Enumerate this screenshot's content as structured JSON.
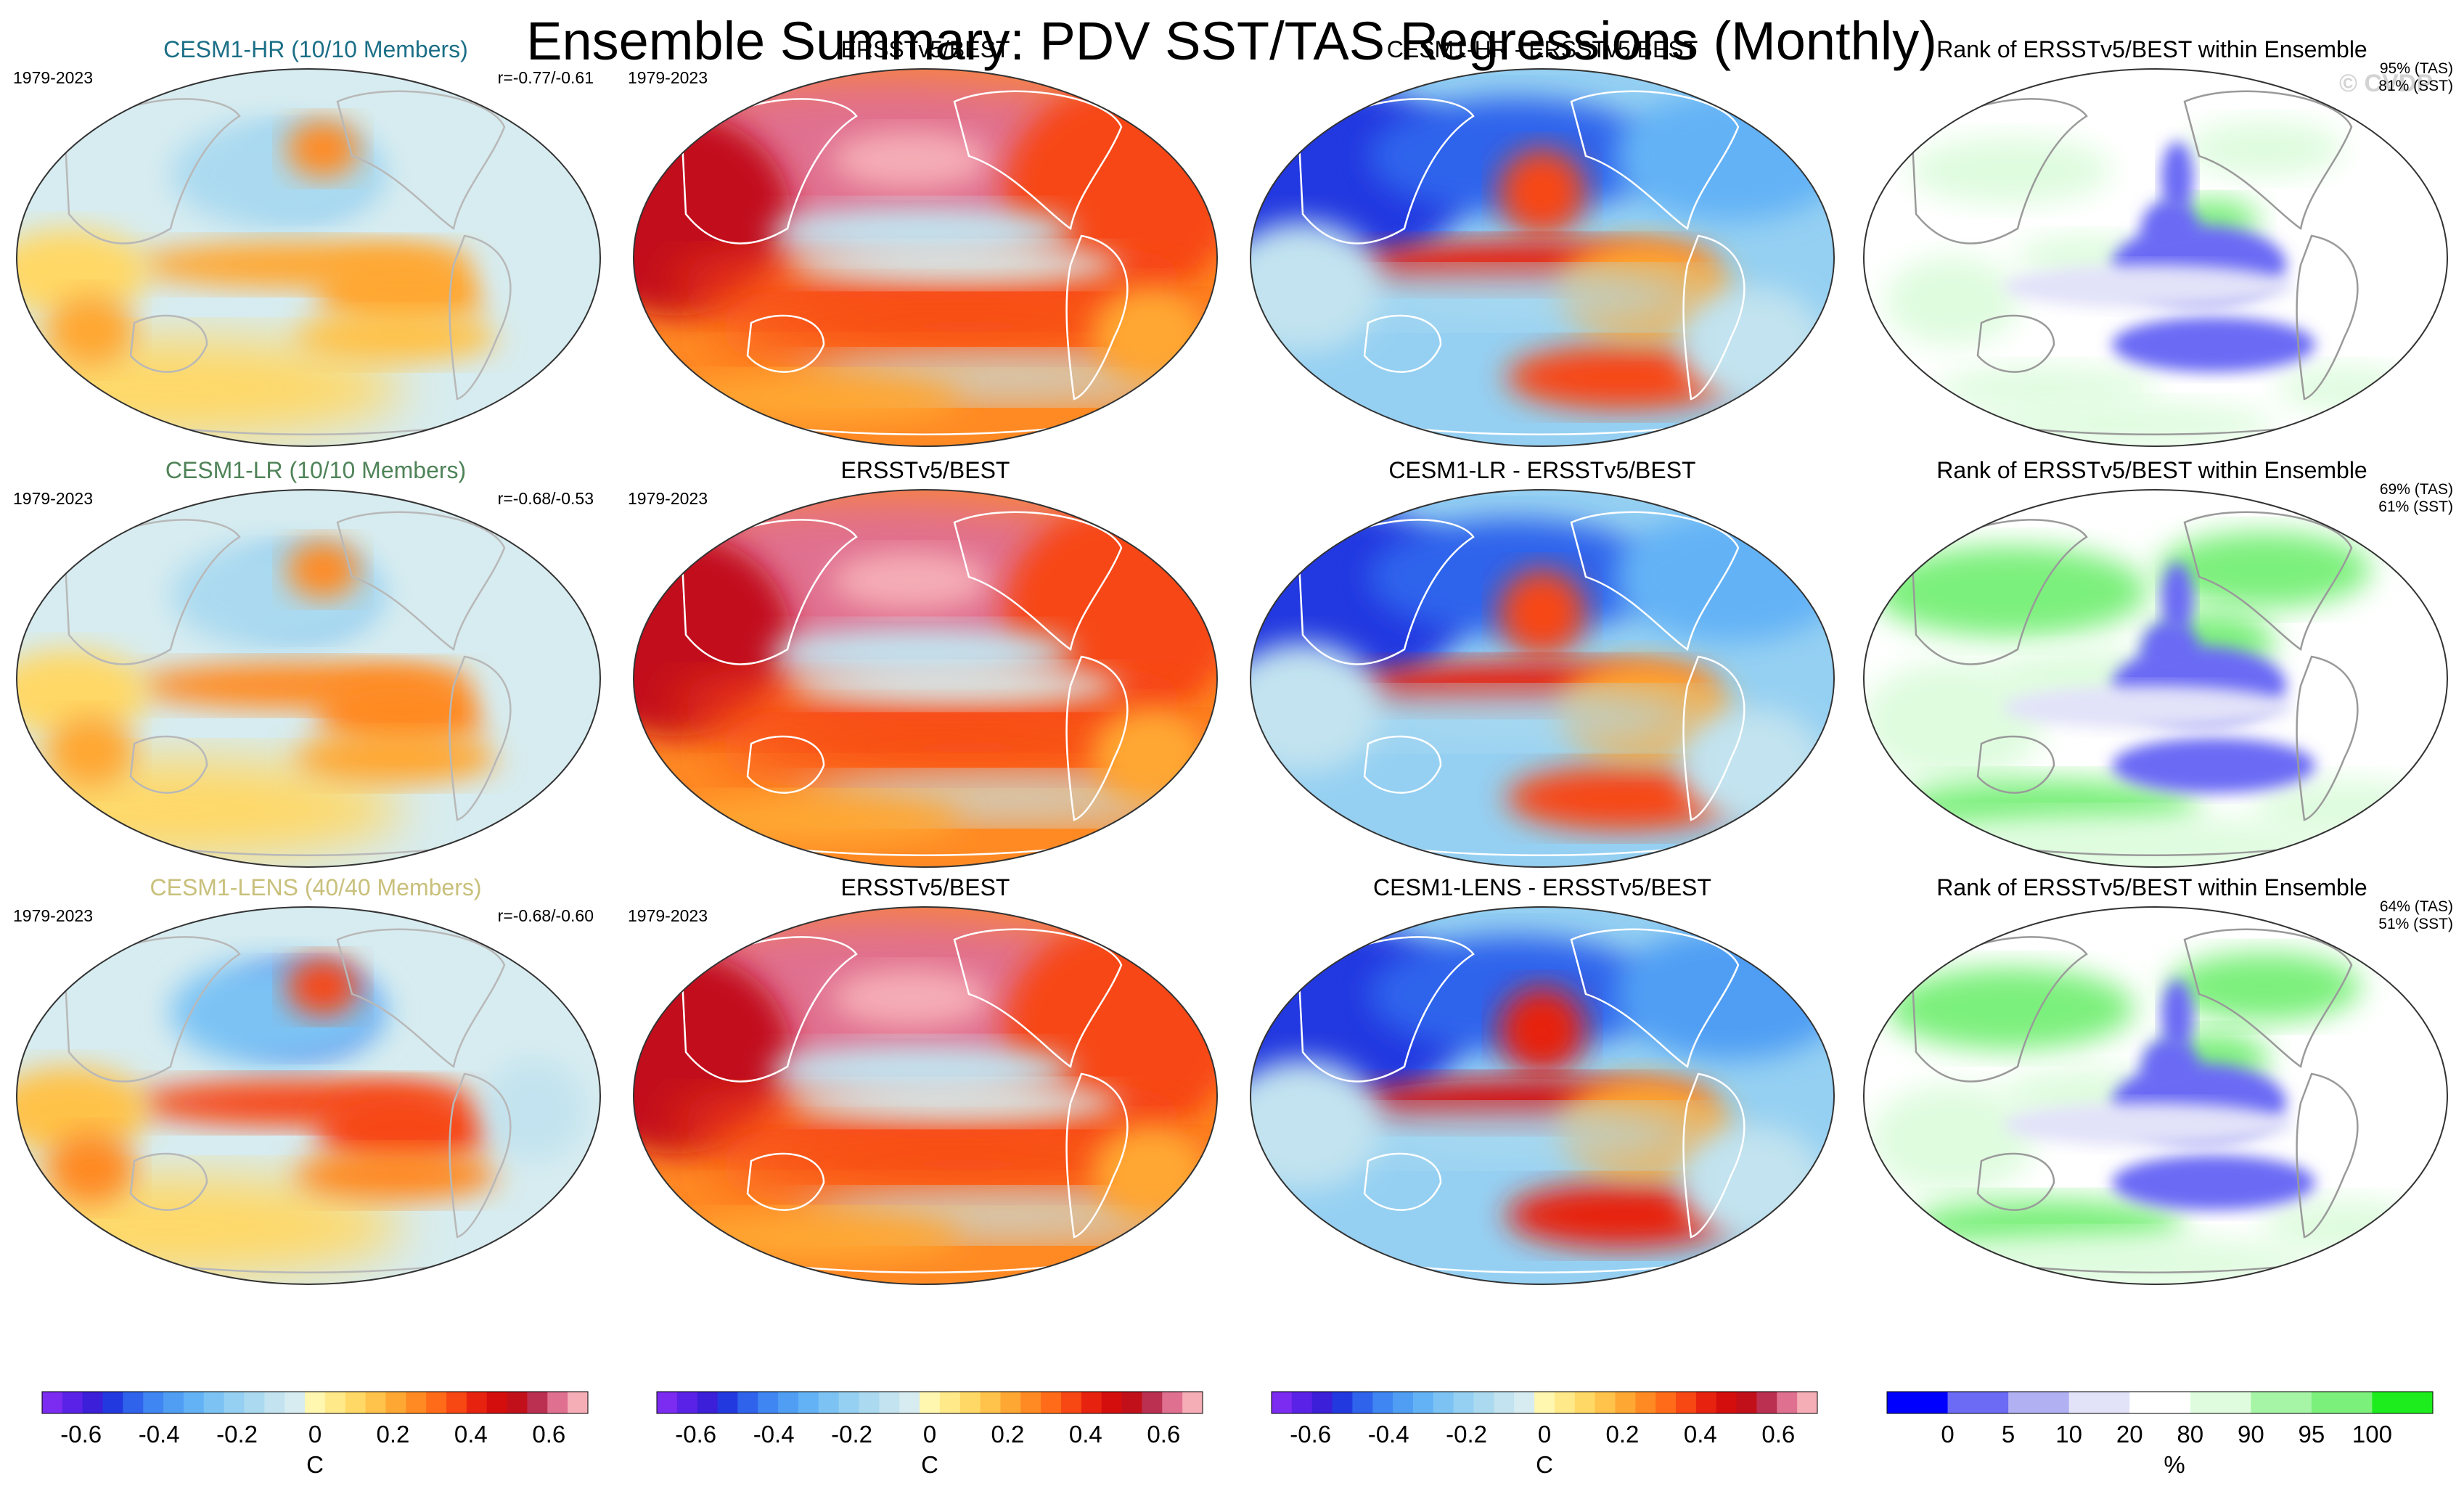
{
  "title": "Ensemble Summary: PDV SST/TAS Regressions (Monthly)",
  "watermark": "© CVDP",
  "colors": {
    "model_hr": "#1b6f86",
    "model_lr": "#4f8358",
    "model_lens": "#c9c07c",
    "watermark": "#d3d3d3"
  },
  "chart_data": {
    "type": "heatmap",
    "layout": "3 rows x 4 columns of global map panels",
    "rows": [
      {
        "model_title": "CESM1-HR (10/10 Members)",
        "model_color_key": "model_hr",
        "period": "1979-2023",
        "pattern_corr": "r=-0.77/-0.61",
        "obs_title": "ERSSTv5/BEST",
        "obs_period": "1979-2023",
        "diff_title": "CESM1-HR - ERSSTv5/BEST",
        "rank_title": "Rank of ERSSTv5/BEST within Ensemble",
        "rank_tas": "95% (TAS)",
        "rank_sst": "81% (SST)",
        "model_amp": 0.62,
        "diff_amp": 0.85,
        "rank_green": 0.35
      },
      {
        "model_title": "CESM1-LR (10/10 Members)",
        "model_color_key": "model_lr",
        "period": "1979-2023",
        "pattern_corr": "r=-0.68/-0.53",
        "obs_title": "ERSSTv5/BEST",
        "obs_period": "1979-2023",
        "diff_title": "CESM1-LR - ERSSTv5/BEST",
        "rank_title": "Rank of ERSSTv5/BEST within Ensemble",
        "rank_tas": "69% (TAS)",
        "rank_sst": "61% (SST)",
        "model_amp": 0.7,
        "diff_amp": 0.85,
        "rank_green": 0.9
      },
      {
        "model_title": "CESM1-LENS (40/40 Members)",
        "model_color_key": "model_lens",
        "period": "1979-2023",
        "pattern_corr": "r=-0.68/-0.60",
        "obs_title": "ERSSTv5/BEST",
        "obs_period": "1979-2023",
        "diff_title": "CESM1-LENS - ERSSTv5/BEST",
        "rank_title": "Rank of ERSSTv5/BEST within Ensemble",
        "rank_tas": "64% (TAS)",
        "rank_sst": "51% (SST)",
        "model_amp": 1.0,
        "diff_amp": 0.9,
        "rank_green": 0.7
      }
    ],
    "temperature_colorbar": {
      "units": "C",
      "range": [
        -0.7,
        0.7
      ],
      "interval": 0.05,
      "tick_labels": [
        "-0.6",
        "-0.4",
        "-0.2",
        "0",
        "0.2",
        "0.4",
        "0.6"
      ],
      "tick_values": [
        -0.6,
        -0.4,
        -0.2,
        0,
        0.2,
        0.4,
        0.6
      ],
      "colors": [
        "#7b2cf0",
        "#5a22e6",
        "#3b1fd9",
        "#2339e0",
        "#2f63ec",
        "#3f86f2",
        "#4f9ef4",
        "#63b2f6",
        "#7cc3f4",
        "#95d0f2",
        "#abdaf0",
        "#c2e3ef",
        "#d7ecf0",
        "#fff7b0",
        "#ffe989",
        "#ffd866",
        "#ffc24a",
        "#ffa733",
        "#ff8a24",
        "#ff6b19",
        "#f74712",
        "#e72310",
        "#d40d0d",
        "#c2101b",
        "#bb3050",
        "#e07090",
        "#f5adb6"
      ]
    },
    "percent_colorbar": {
      "units": "%",
      "tick_labels": [
        "0",
        "5",
        "10",
        "20",
        "80",
        "90",
        "95",
        "100"
      ],
      "tick_values": [
        0,
        5,
        10,
        20,
        80,
        90,
        95,
        100
      ],
      "bin_edges": [
        0,
        5,
        10,
        20,
        80,
        90,
        95,
        100
      ],
      "colors": [
        "#0000ff",
        "#6b6bf5",
        "#b0b0f3",
        "#e2e2f9",
        "#ffffff",
        "#dffcdf",
        "#a6f5a6",
        "#7bf07b",
        "#1ded1d"
      ]
    }
  }
}
